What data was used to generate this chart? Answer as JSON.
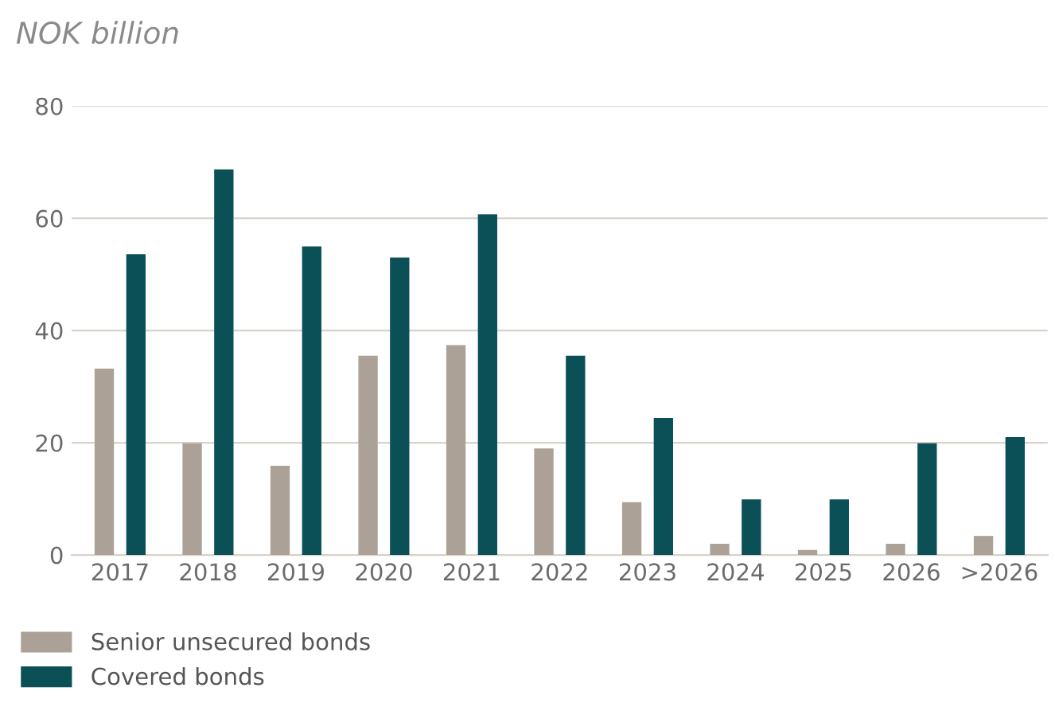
{
  "chart_data": {
    "type": "bar",
    "ylabel": "NOK billion",
    "categories": [
      "2017",
      "2018",
      "2019",
      "2020",
      "2021",
      "2022",
      "2023",
      "2024",
      "2025",
      "2026",
      ">2026"
    ],
    "series": [
      {
        "name": "Senior unsecured bonds",
        "color": "#aba197",
        "values": [
          33.2,
          19.9,
          15.9,
          35.5,
          37.4,
          19,
          9.4,
          2,
          0.9,
          2,
          3.4
        ]
      },
      {
        "name": "Covered bonds",
        "color": "#0b4f57",
        "values": [
          53.6,
          68.7,
          55,
          53,
          60.7,
          35.5,
          24.4,
          9.9,
          9.9,
          19.9,
          21
        ]
      }
    ],
    "ylim": [
      0,
      80
    ],
    "yticks": [
      0,
      20,
      40,
      60,
      80
    ],
    "grid": "y",
    "legend": "bottom"
  }
}
